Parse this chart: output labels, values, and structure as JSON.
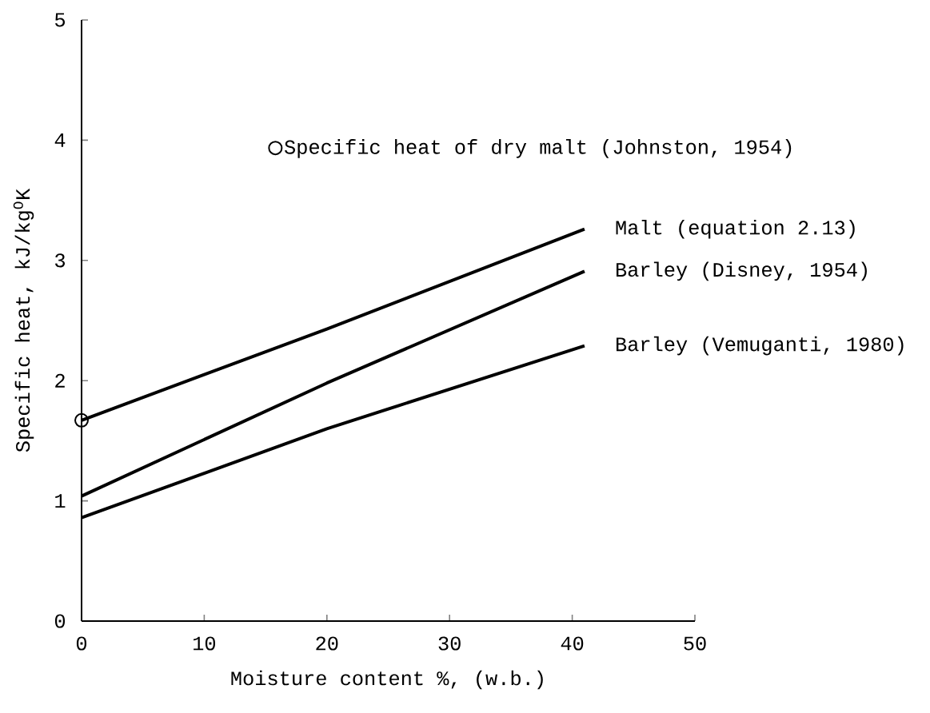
{
  "chart_data": {
    "type": "line",
    "xlabel": "Moisture content %, (w.b.)",
    "ylabel": "Specific heat, kJ/kg$^{O}$K",
    "xlim": [
      0,
      50
    ],
    "ylim": [
      0,
      5
    ],
    "xticks": [
      0,
      10,
      20,
      30,
      40,
      50
    ],
    "yticks": [
      0,
      1,
      2,
      3,
      4,
      5
    ],
    "grid": false,
    "legend": "top right",
    "line_style": "solid",
    "marker": "none",
    "series": [
      {
        "name": "Malt (equation 2.13)",
        "color": "#000000",
        "x": [
          0,
          20,
          41
        ],
        "values": [
          1.67,
          2.43,
          3.26
        ]
      },
      {
        "name": "Barley (Disney, 1954)",
        "color": "#000000",
        "x": [
          0,
          20,
          41
        ],
        "values": [
          1.04,
          1.98,
          2.91
        ]
      },
      {
        "name": "Barley (Vemuganti, 1980)",
        "color": "#000000",
        "x": [
          0,
          20,
          41
        ],
        "values": [
          0.86,
          1.6,
          2.29
        ]
      },
      {
        "name": "Specific heat of dry malt (Johnston, 1954)",
        "type": "scatter",
        "marker": "circle",
        "color": "#000000",
        "x": [
          0
        ],
        "values": [
          1.67
        ]
      }
    ]
  }
}
